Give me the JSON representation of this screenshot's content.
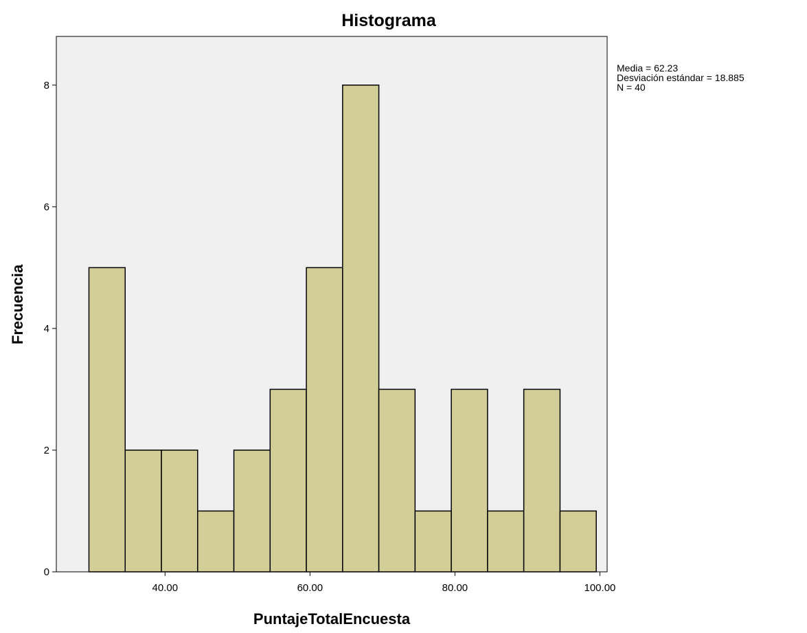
{
  "chart_data": {
    "type": "bar",
    "title": "Histograma",
    "xlabel": "PuntajeTotalEncuesta",
    "ylabel": "Frecuencia",
    "bin_edges": [
      29.5,
      34.5,
      39.5,
      44.5,
      49.5,
      54.5,
      59.5,
      64.5,
      69.5,
      74.5,
      79.5,
      84.5,
      89.5,
      94.5,
      99.5
    ],
    "values": [
      5,
      2,
      2,
      1,
      2,
      3,
      5,
      8,
      3,
      1,
      3,
      1,
      3,
      1
    ],
    "xlim": [
      25,
      101
    ],
    "ylim": [
      0,
      8.8
    ],
    "x_ticks": [
      40,
      60,
      80,
      100
    ],
    "x_tick_labels": [
      "40.00",
      "60.00",
      "80.00",
      "100.00"
    ],
    "y_ticks": [
      0,
      2,
      4,
      6,
      8
    ],
    "y_tick_labels": [
      "0",
      "2",
      "4",
      "6",
      "8"
    ],
    "stats": {
      "media": "Media = 62.23",
      "desviacion": "Desviación estándar = 18.885",
      "n": "N = 40"
    },
    "grid": false,
    "legend": "none",
    "colors": {
      "bar_fill": "#d3ce97",
      "bar_stroke": "#000000",
      "plot_background": "#f0f0f0"
    }
  }
}
